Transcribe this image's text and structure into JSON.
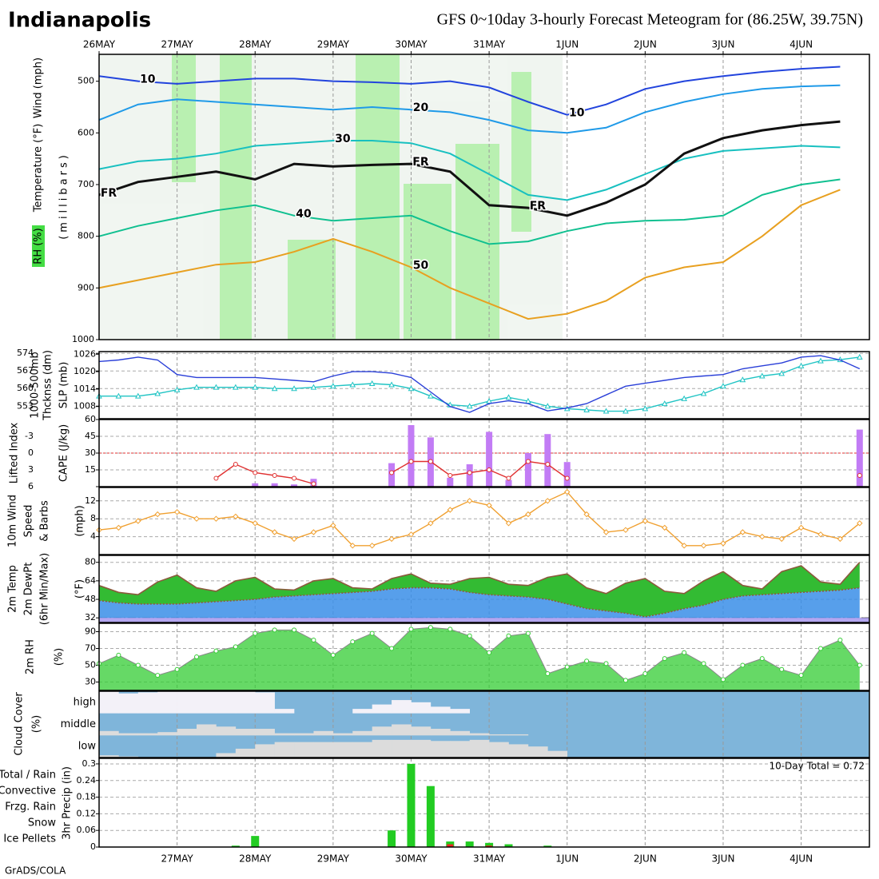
{
  "header": {
    "title": "Indianapolis",
    "subtitle": "GFS 0~10day 3-hourly Forecast Meteogram for (86.25W, 39.75N)"
  },
  "footer": "GrADS/COLA",
  "time_axis": {
    "xlim": [
      0,
      237
    ],
    "x": [
      0,
      6,
      12,
      18,
      24,
      30,
      36,
      42,
      48,
      54,
      60,
      66,
      72,
      78,
      84,
      90,
      96,
      102,
      108,
      114,
      120,
      126,
      132,
      138,
      144,
      150,
      156,
      162,
      168,
      174,
      180,
      186,
      192,
      198,
      204,
      210,
      216,
      222,
      228,
      234
    ],
    "top_ticks": [
      {
        "value": 0,
        "label": "26MAY"
      },
      {
        "value": 24,
        "label": "27MAY"
      },
      {
        "value": 48,
        "label": "28MAY"
      },
      {
        "value": 72,
        "label": "29MAY"
      },
      {
        "value": 96,
        "label": "30MAY"
      },
      {
        "value": 120,
        "label": "31MAY"
      },
      {
        "value": 144,
        "label": "1JUN"
      },
      {
        "value": 168,
        "label": "2JUN"
      },
      {
        "value": 192,
        "label": "3JUN"
      },
      {
        "value": 216,
        "label": "4JUN"
      }
    ],
    "bottom_ticks": [
      {
        "value": 24,
        "label": "27MAY"
      },
      {
        "value": 48,
        "label": "28MAY"
      },
      {
        "value": 72,
        "label": "29MAY"
      },
      {
        "value": 96,
        "label": "30MAY"
      },
      {
        "value": 120,
        "label": "31MAY"
      },
      {
        "value": 144,
        "label": "1JUN"
      },
      {
        "value": 168,
        "label": "2JUN"
      },
      {
        "value": 192,
        "label": "3JUN"
      },
      {
        "value": 216,
        "label": "4JUN"
      }
    ]
  },
  "chart_data": [
    {
      "type": "isotherm",
      "x": [
        0,
        12,
        24,
        36,
        48,
        60,
        72,
        84,
        96,
        108,
        120,
        132,
        144,
        156,
        168,
        180,
        192,
        204,
        216,
        228
      ],
      "ylim": [
        1000,
        448
      ],
      "yticks": [
        500,
        600,
        700,
        800,
        900,
        1000
      ],
      "ylabels": [
        "Wind (mph)",
        "Temperature (°F)",
        "RH (%)"
      ],
      "y_title": "(millibars)",
      "series": [
        {
          "name": "10",
          "color": "#2244dd",
          "values": [
            490,
            500,
            505,
            500,
            495,
            495,
            500,
            502,
            505,
            500,
            512,
            540,
            565,
            545,
            515,
            500,
            490,
            482,
            476,
            472
          ]
        },
        {
          "name": "20",
          "color": "#1f9ae8",
          "values": [
            575,
            545,
            535,
            540,
            545,
            550,
            555,
            550,
            555,
            560,
            575,
            595,
            600,
            590,
            560,
            540,
            525,
            515,
            510,
            508
          ]
        },
        {
          "name": "30",
          "color": "#18c0c0",
          "values": [
            670,
            655,
            650,
            640,
            625,
            620,
            615,
            615,
            620,
            640,
            680,
            720,
            730,
            710,
            680,
            650,
            635,
            630,
            625,
            628
          ]
        },
        {
          "name": "40",
          "color": "#10c090",
          "values": [
            800,
            780,
            765,
            750,
            740,
            760,
            770,
            765,
            760,
            790,
            815,
            810,
            790,
            775,
            770,
            768,
            760,
            720,
            700,
            690
          ]
        },
        {
          "name": "50",
          "color": "#e8a020",
          "values": [
            900,
            885,
            870,
            855,
            850,
            830,
            805,
            830,
            860,
            900,
            930,
            960,
            950,
            925,
            880,
            860,
            850,
            800,
            740,
            710
          ]
        },
        {
          "name": "FR",
          "color": "#111111",
          "values": [
            720,
            695,
            685,
            675,
            690,
            660,
            665,
            662,
            660,
            675,
            740,
            745,
            760,
            735,
            700,
            640,
            610,
            595,
            585,
            578
          ]
        }
      ]
    },
    {
      "type": "line",
      "grid": true,
      "ylim": [
        548,
        574.7
      ],
      "yticks": [
        553,
        560,
        567,
        574
      ],
      "y2lim": [
        1003.8,
        1026.9
      ],
      "y2ticks": [
        1008,
        1014,
        1020,
        1026
      ],
      "ylabels": [
        "1000-500mb",
        "Thcknss (dm)"
      ],
      "y2labels": [
        "SLP (mb)"
      ],
      "series": [
        {
          "color": "#20c4c4",
          "marker": "triangle",
          "values": [
            557,
            557,
            557,
            558,
            559.5,
            560.5,
            560.5,
            560.5,
            560.5,
            560,
            560,
            560.5,
            561,
            561.5,
            562,
            561.5,
            560,
            557,
            553.5,
            553,
            555,
            556.5,
            555,
            553,
            552,
            551.5,
            551,
            551,
            552,
            554,
            556,
            558,
            561,
            563.5,
            565,
            566,
            569,
            571,
            571.5,
            572.5
          ]
        },
        {
          "color": "#2a3fd8",
          "axis": "y2",
          "values": [
            1023.5,
            1024,
            1025,
            1024,
            1019,
            1018,
            1018,
            1018,
            1018,
            1017.5,
            1017,
            1016.5,
            1018.5,
            1020,
            1020,
            1019.5,
            1018,
            1013,
            1008,
            1006,
            1009,
            1010,
            1009,
            1006.5,
            1007.5,
            1009,
            1012,
            1015,
            1016,
            1017,
            1018,
            1018.5,
            1019,
            1021,
            1022,
            1023,
            1025,
            1025.5,
            1024,
            1021
          ]
        }
      ]
    },
    {
      "type": "line",
      "grid": true,
      "ylim": [
        6,
        -6
      ],
      "yticks": [
        6,
        3,
        0,
        -3
      ],
      "yref": 0,
      "y2lim": [
        0,
        60
      ],
      "y2ticks": [
        15,
        30,
        45,
        60
      ],
      "ylabels": [
        "Lifted Index"
      ],
      "y2labels": [
        "CAPE (J/kg)"
      ],
      "series": [
        {
          "type": "bar",
          "axis": "y2",
          "color": "#c27cf5",
          "values": [
            0,
            0,
            0,
            0,
            0,
            0,
            0,
            0,
            3,
            3,
            2,
            7,
            0,
            0,
            0,
            21,
            55,
            44,
            8,
            20,
            49,
            6,
            30,
            47,
            22,
            0,
            0,
            0,
            0,
            0,
            0,
            0,
            0,
            0,
            0,
            0,
            0,
            0,
            0,
            51
          ]
        },
        {
          "color": "#e03030",
          "marker": "circle",
          "values": [
            null,
            null,
            null,
            null,
            null,
            null,
            4.5,
            2,
            3.5,
            4,
            4.5,
            5.5,
            null,
            null,
            null,
            3.5,
            1.5,
            1.5,
            4,
            3.5,
            3,
            4.5,
            1.5,
            2,
            4.5,
            null,
            null,
            null,
            null,
            null,
            null,
            null,
            null,
            null,
            null,
            null,
            null,
            null,
            null,
            4
          ]
        }
      ]
    },
    {
      "type": "line",
      "grid": true,
      "ylim": [
        0,
        15
      ],
      "yticks": [
        4,
        8,
        12
      ],
      "ylabels": [
        "10m Wind",
        "Speed",
        "& Barbs",
        "(mph)"
      ],
      "series": [
        {
          "color": "#f0a030",
          "marker": "diamond",
          "values": [
            5.5,
            6,
            7.5,
            9,
            9.5,
            8,
            8,
            8.5,
            7,
            5,
            3.5,
            5,
            6.5,
            2,
            2,
            3.5,
            4.5,
            7,
            10,
            12,
            11,
            7,
            9,
            12,
            14,
            9,
            5,
            5.5,
            7.5,
            6,
            2,
            2,
            2.5,
            5,
            4,
            3.5,
            6,
            4.5,
            3.5,
            7
          ]
        }
      ]
    },
    {
      "type": "temp",
      "grid": true,
      "ylim": [
        28,
        86
      ],
      "yticks": [
        32,
        48,
        64,
        80
      ],
      "yref": 32,
      "ylabels": [
        "2m Temp",
        "2m DewPt",
        "(6hr Min/Max)",
        "(°F)"
      ],
      "series": [
        {
          "color": "#8b5a3c",
          "fill": "#33bb33",
          "values": [
            60,
            54,
            52,
            63,
            69,
            58,
            55,
            64,
            67,
            57,
            56,
            64,
            66,
            58,
            57,
            66,
            70,
            62,
            61,
            66,
            67,
            61,
            60,
            67,
            70,
            58,
            53,
            62,
            66,
            55,
            53,
            64,
            72,
            60,
            57,
            72,
            77,
            63,
            61,
            80
          ]
        },
        {
          "color": "#8b5a3c",
          "fill": "#3a8ee8",
          "dash": true,
          "values": [
            47,
            45,
            44,
            44,
            44,
            45,
            46,
            47,
            48,
            50,
            51,
            52,
            53,
            54,
            55,
            57,
            58,
            58,
            57,
            54,
            52,
            51,
            50,
            48,
            44,
            40,
            38,
            36,
            33,
            36,
            40,
            43,
            48,
            51,
            52,
            53,
            54,
            55,
            56,
            58
          ]
        }
      ]
    },
    {
      "type": "area",
      "grid": true,
      "ylim": [
        20,
        100
      ],
      "yticks": [
        30,
        50,
        70,
        90
      ],
      "ylabels": [
        "2m RH",
        "(%)"
      ],
      "series": [
        {
          "color": "#33cc33",
          "values": [
            52,
            62,
            50,
            38,
            45,
            60,
            67,
            72,
            88,
            92,
            92,
            80,
            62,
            78,
            88,
            70,
            93,
            95,
            93,
            85,
            65,
            85,
            88,
            40,
            48,
            55,
            52,
            32,
            40,
            58,
            65,
            52,
            33,
            50,
            58,
            45,
            38,
            70,
            80,
            50
          ]
        }
      ]
    },
    {
      "type": "cloud",
      "background": "#7fb5da",
      "ylabels": [
        "Cloud Cover",
        "(%)"
      ],
      "series": [
        {
          "name": "high",
          "color": "#f3f1f8",
          "values": [
            100,
            90,
            95,
            100,
            100,
            100,
            100,
            100,
            95,
            20,
            0,
            0,
            0,
            20,
            40,
            60,
            50,
            30,
            20,
            0,
            0,
            0,
            0,
            0,
            0,
            0,
            0,
            0,
            0,
            0,
            0,
            0,
            0,
            0,
            0,
            0,
            0,
            0,
            0,
            0
          ]
        },
        {
          "name": "middle",
          "color": "#dcdcdc",
          "values": [
            20,
            10,
            10,
            15,
            30,
            50,
            40,
            30,
            30,
            10,
            10,
            20,
            10,
            20,
            40,
            50,
            40,
            30,
            20,
            10,
            5,
            5,
            0,
            0,
            0,
            0,
            0,
            0,
            0,
            0,
            0,
            0,
            0,
            0,
            0,
            0,
            0,
            0,
            0,
            0
          ]
        },
        {
          "name": "low",
          "color": "#dcdcdc",
          "values": [
            10,
            5,
            0,
            0,
            0,
            0,
            20,
            40,
            60,
            70,
            70,
            70,
            70,
            70,
            80,
            80,
            80,
            75,
            75,
            80,
            70,
            60,
            50,
            30,
            0,
            0,
            0,
            0,
            0,
            0,
            0,
            0,
            0,
            0,
            0,
            0,
            0,
            0,
            0,
            0
          ]
        }
      ]
    },
    {
      "type": "bar",
      "grid": true,
      "ylim": [
        0,
        0.32
      ],
      "yticks": [
        0,
        0.06,
        0.12,
        0.18,
        0.24,
        0.3
      ],
      "ylabels": [
        "3hr Precip (in)"
      ],
      "annotation": "10-Day Total = 0.72",
      "series": [
        {
          "name": "Total / Rain",
          "color": "#22cc22",
          "values": [
            0,
            0,
            0,
            0,
            0,
            0,
            0,
            0.005,
            0.04,
            0,
            0,
            0,
            0,
            0,
            0,
            0.06,
            0.3,
            0.22,
            0.02,
            0.02,
            0.015,
            0.01,
            0,
            0.005,
            0,
            0,
            0,
            0,
            0,
            0,
            0,
            0,
            0,
            0,
            0,
            0,
            0,
            0,
            0,
            0
          ]
        },
        {
          "name": "Convective",
          "color": "#ee2222",
          "values": [
            0,
            0,
            0,
            0,
            0,
            0,
            0,
            0,
            0,
            0,
            0,
            0,
            0,
            0,
            0,
            0,
            0,
            0,
            0.01,
            0,
            0.005,
            0,
            0,
            0,
            0,
            0,
            0,
            0,
            0,
            0,
            0,
            0,
            0,
            0,
            0,
            0,
            0,
            0,
            0,
            0
          ]
        },
        {
          "name": "Frzg. Rain",
          "color": "#f08c1c",
          "values": [
            0,
            0,
            0,
            0,
            0,
            0,
            0,
            0,
            0,
            0,
            0,
            0,
            0,
            0,
            0,
            0,
            0,
            0,
            0,
            0,
            0,
            0,
            0,
            0,
            0,
            0,
            0,
            0,
            0,
            0,
            0,
            0,
            0,
            0,
            0,
            0,
            0,
            0,
            0,
            0
          ]
        },
        {
          "name": "Snow",
          "color": "#3344ee",
          "values": [
            0,
            0,
            0,
            0,
            0,
            0,
            0,
            0,
            0,
            0,
            0,
            0,
            0,
            0,
            0,
            0,
            0,
            0,
            0,
            0,
            0,
            0,
            0,
            0,
            0,
            0,
            0,
            0,
            0,
            0,
            0,
            0,
            0,
            0,
            0,
            0,
            0,
            0,
            0,
            0
          ]
        },
        {
          "name": "Ice Pellets",
          "color": "#22cccc",
          "values": [
            0,
            0,
            0,
            0,
            0,
            0,
            0,
            0,
            0,
            0,
            0,
            0,
            0,
            0,
            0,
            0,
            0,
            0,
            0,
            0,
            0,
            0,
            0,
            0,
            0,
            0,
            0,
            0,
            0,
            0,
            0,
            0,
            0,
            0,
            0,
            0,
            0,
            0,
            0,
            0
          ]
        }
      ]
    }
  ]
}
